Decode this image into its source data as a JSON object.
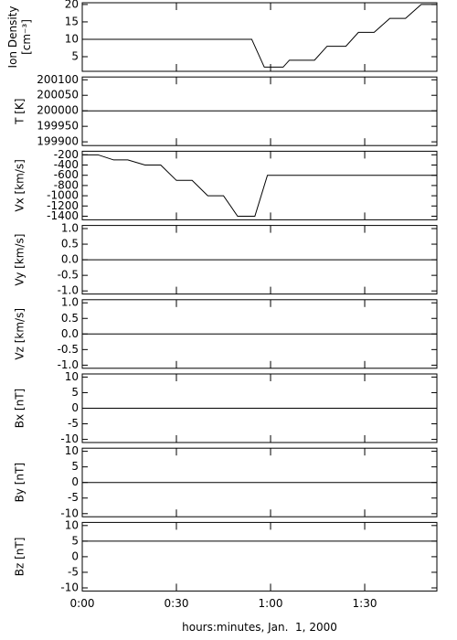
{
  "chart_data": [
    {
      "type": "line",
      "ylabel": [
        "Ion Density",
        "[cm⁻³]"
      ],
      "x": [
        0,
        54,
        58,
        64,
        66,
        74,
        78,
        84,
        88,
        93,
        98,
        103,
        108,
        113
      ],
      "values": [
        10,
        10,
        2,
        2,
        4,
        4,
        8,
        8,
        12,
        12,
        16,
        16,
        20,
        20
      ],
      "xlim": [
        0,
        113
      ],
      "ylim": [
        0.8,
        20.5
      ],
      "yticks": [
        5,
        10,
        15,
        20
      ],
      "color": "#000000"
    },
    {
      "type": "line",
      "ylabel": [
        "T [K]"
      ],
      "x": [
        0,
        113
      ],
      "values": [
        200000,
        200000
      ],
      "xlim": [
        0,
        113
      ],
      "ylim": [
        199888,
        200109
      ],
      "yticks": [
        199900,
        199950,
        200000,
        200050,
        200100
      ],
      "color": "#000000"
    },
    {
      "type": "line",
      "ylabel": [
        "Vx [km/s]"
      ],
      "x": [
        0,
        5,
        10,
        14.5,
        20,
        25,
        30,
        35,
        40,
        45,
        49.5,
        55,
        59,
        113
      ],
      "values": [
        -200,
        -200,
        -300,
        -300,
        -400,
        -400,
        -700,
        -700,
        -1000,
        -1000,
        -1400,
        -1400,
        -600,
        -600
      ],
      "xlim": [
        0,
        113
      ],
      "ylim": [
        -1470,
        -130
      ],
      "yticks": [
        -1400,
        -1200,
        -1000,
        -800,
        -600,
        -400,
        -200
      ],
      "color": "#000000"
    },
    {
      "type": "line",
      "ylabel": [
        "Vy [km/s]"
      ],
      "x": [
        0,
        113
      ],
      "values": [
        0,
        0
      ],
      "xlim": [
        0,
        113
      ],
      "ylim": [
        -1.1,
        1.1
      ],
      "yticks": [
        {
          "value": -1,
          "label": "-1.0"
        },
        -0.5,
        {
          "value": 0,
          "label": "0.0"
        },
        0.5,
        {
          "value": 1,
          "label": "1.0"
        }
      ],
      "color": "#000000"
    },
    {
      "type": "line",
      "ylabel": [
        "Vz [km/s]"
      ],
      "x": [
        0,
        113
      ],
      "values": [
        0,
        0
      ],
      "xlim": [
        0,
        113
      ],
      "ylim": [
        -1.1,
        1.1
      ],
      "yticks": [
        {
          "value": -1,
          "label": "-1.0"
        },
        -0.5,
        {
          "value": 0,
          "label": "0.0"
        },
        0.5,
        {
          "value": 1,
          "label": "1.0"
        }
      ],
      "color": "#000000"
    },
    {
      "type": "line",
      "ylabel": [
        "Bx [nT]"
      ],
      "x": [
        0,
        113
      ],
      "values": [
        0,
        0
      ],
      "xlim": [
        0,
        113
      ],
      "ylim": [
        -11,
        11
      ],
      "yticks": [
        -10,
        -5,
        0,
        5,
        10
      ],
      "color": "#000000"
    },
    {
      "type": "line",
      "ylabel": [
        "By [nT]"
      ],
      "x": [
        0,
        113
      ],
      "values": [
        0,
        0
      ],
      "xlim": [
        0,
        113
      ],
      "ylim": [
        -11,
        11
      ],
      "yticks": [
        -10,
        -5,
        0,
        5,
        10
      ],
      "color": "#000000"
    },
    {
      "type": "line",
      "ylabel": [
        "Bz [nT]"
      ],
      "x": [
        0,
        113
      ],
      "values": [
        5,
        5
      ],
      "xlim": [
        0,
        113
      ],
      "ylim": [
        -11,
        11
      ],
      "yticks": [
        -10,
        -5,
        0,
        5,
        10
      ],
      "color": "#000000",
      "xticks": [
        {
          "value": 0,
          "label": "0:00"
        },
        {
          "value": 30,
          "label": "0:30"
        },
        {
          "value": 60,
          "label": "1:00"
        },
        {
          "value": 90,
          "label": "1:30"
        }
      ],
      "xlabel": "hours:minutes, Jan.  1, 2000"
    }
  ]
}
